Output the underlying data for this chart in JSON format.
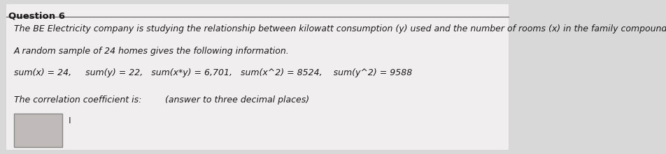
{
  "title": "Question 6",
  "line1": "The BE Electricity company is studying the relationship between kilowatt consumption (y) used and the number of rooms (x) in the family compound.",
  "line2": "A random sample of 24 homes gives the following information.",
  "line3": "sum(x) = 24,     sum(y) = 22,   sum(x*y) = 6,701,   sum(x^2) = 8524,    sum(y^2) = 9588",
  "line4_left": "The correlation coefficient is:",
  "line4_right": "(answer to three decimal places)",
  "bg_color": "#d8d8d8",
  "inner_bg": "#f0eeee",
  "title_font_size": 9.5,
  "body_font_size": 9.0,
  "input_box_color": "#c0baba",
  "cursor_color": "#2a2a2a"
}
